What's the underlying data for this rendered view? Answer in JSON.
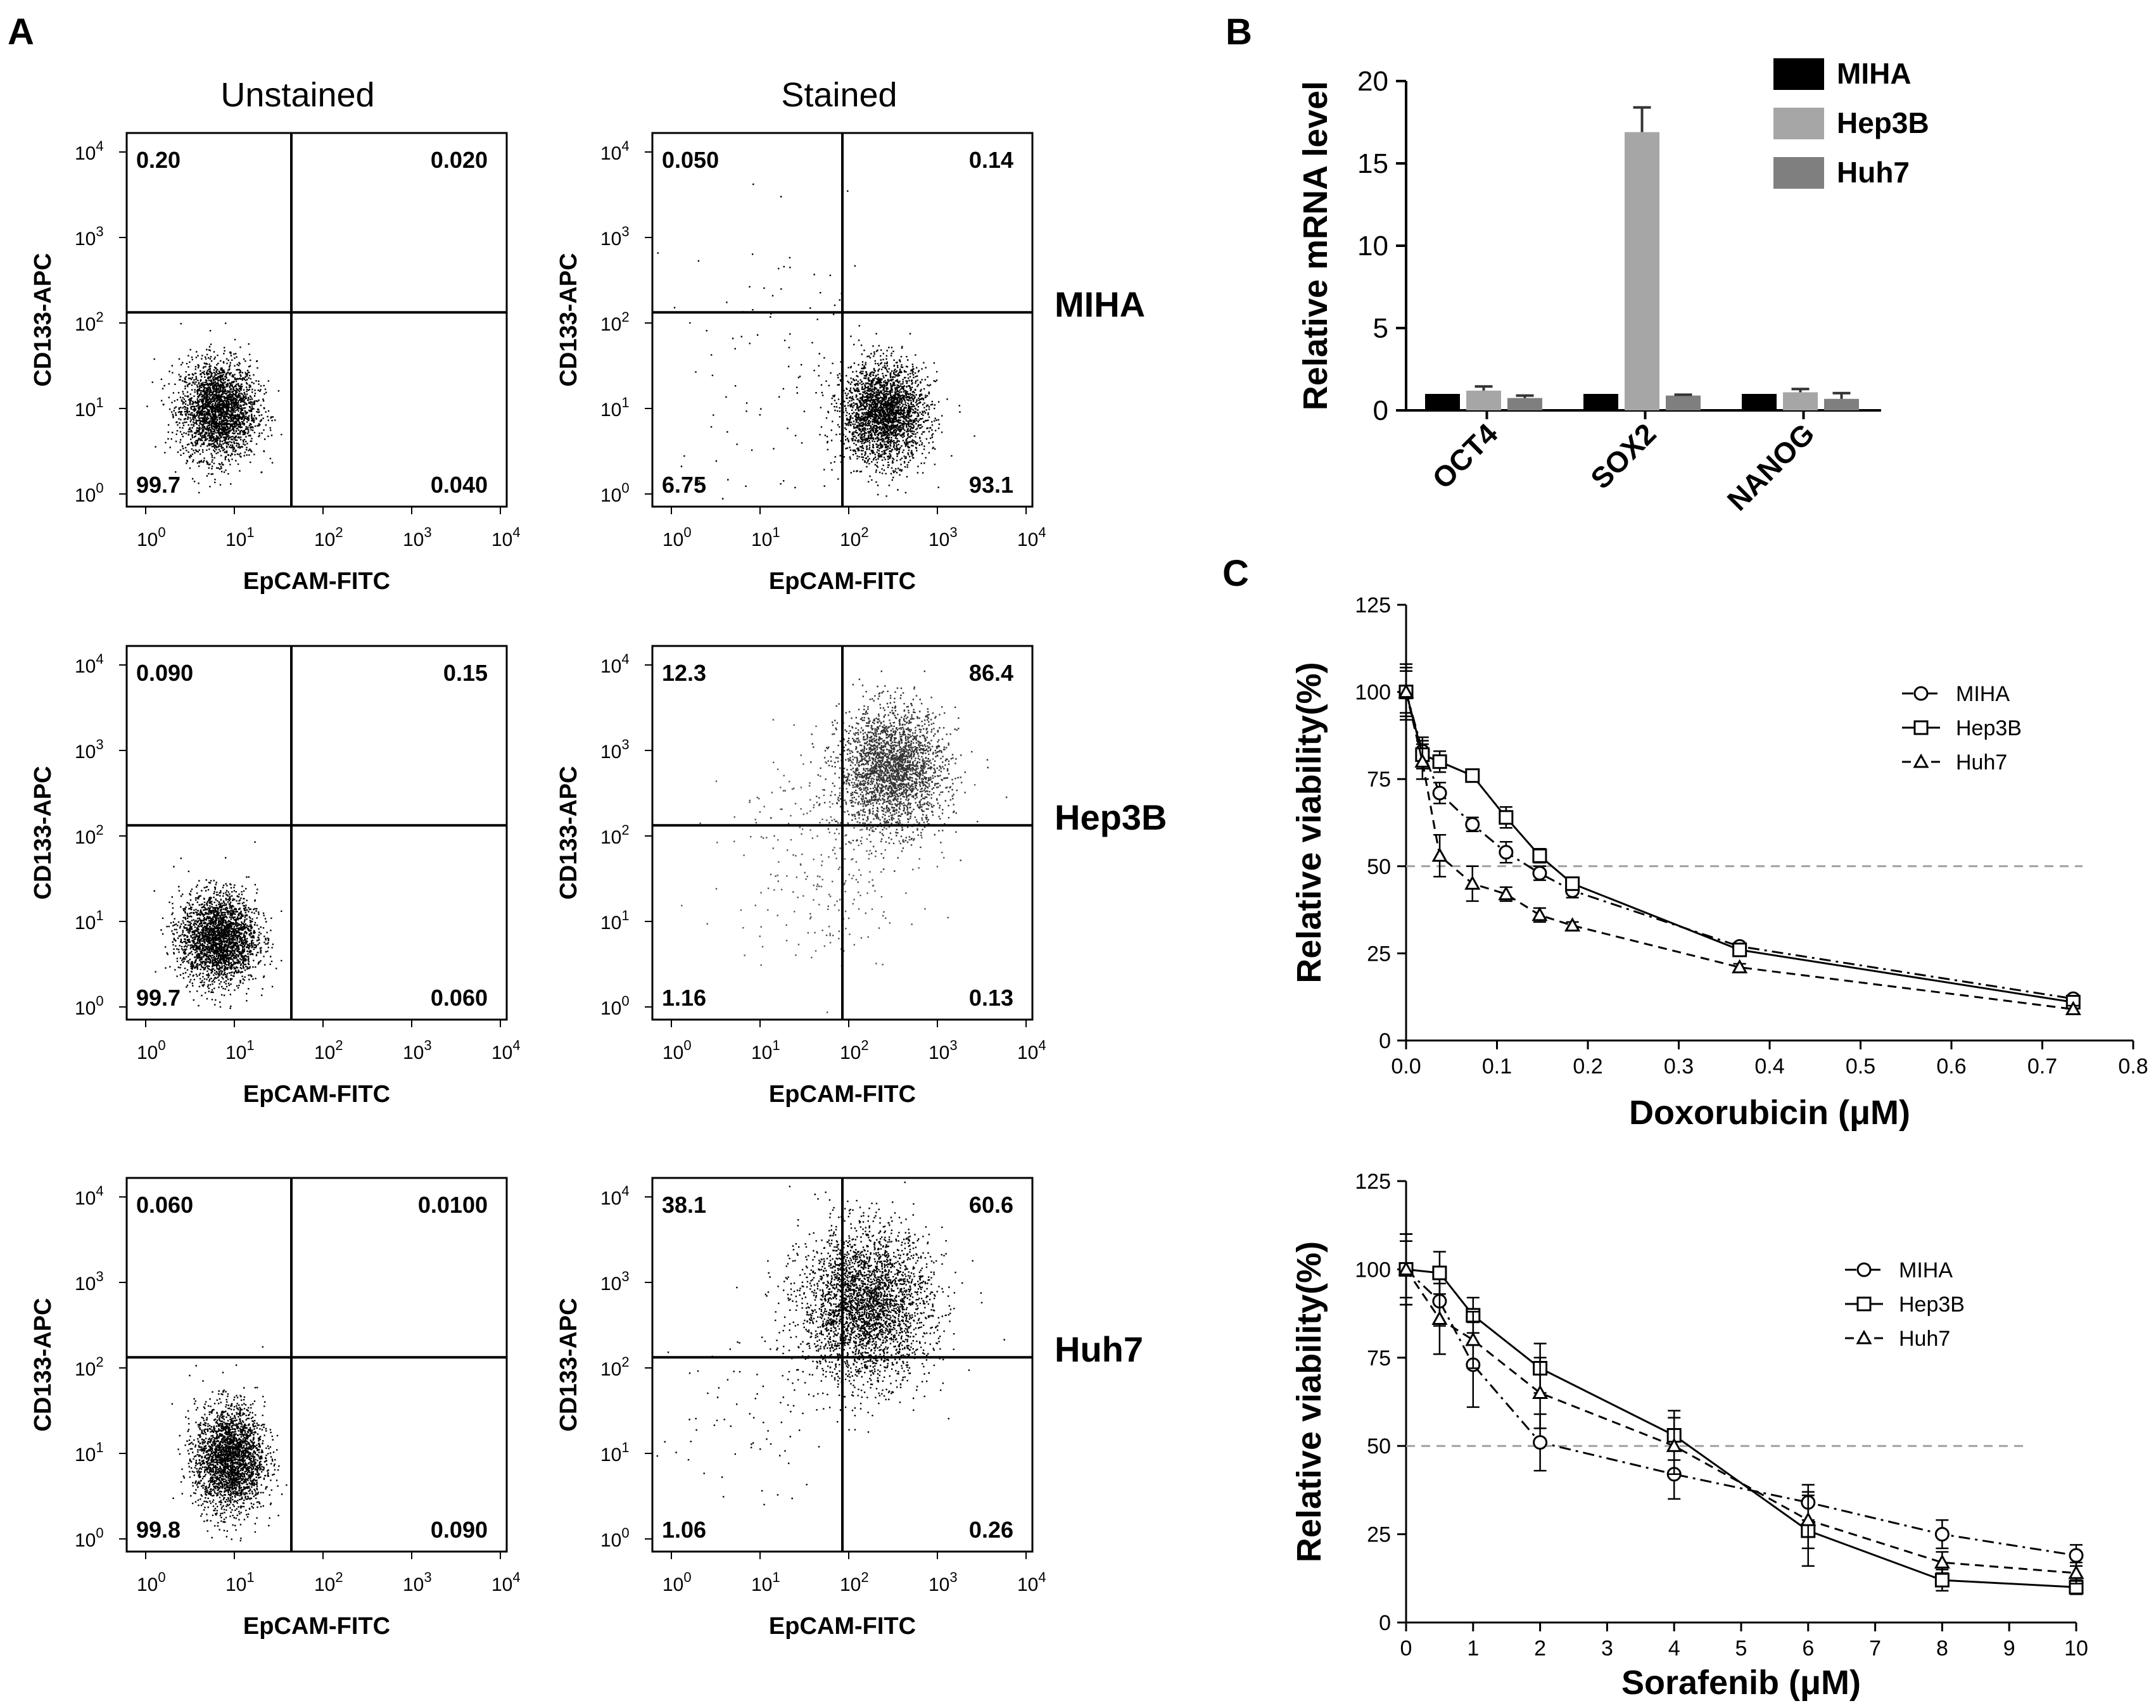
{
  "panel_labels": [
    "A",
    "B",
    "C"
  ],
  "flow": {
    "column_titles": [
      "Unstained",
      "Stained"
    ],
    "x_axis_label": "EpCAM-FITC",
    "y_axis_label": "CD133-APC",
    "tick_base": "10",
    "tick_exponents": [
      "0",
      "1",
      "2",
      "3",
      "4"
    ],
    "rows": [
      {
        "cell_line": "MIHA",
        "plots": [
          {
            "condition": "Unstained",
            "quadrants": {
              "top_left": "0.20",
              "top_right": "0.020",
              "bottom_left": "99.7",
              "bottom_right": "0.040"
            }
          },
          {
            "condition": "Stained",
            "quadrants": {
              "top_left": "0.050",
              "top_right": "0.14",
              "bottom_left": "6.75",
              "bottom_right": "93.1"
            }
          }
        ]
      },
      {
        "cell_line": "Hep3B",
        "plots": [
          {
            "condition": "Unstained",
            "quadrants": {
              "top_left": "0.090",
              "top_right": "0.15",
              "bottom_left": "99.7",
              "bottom_right": "0.060"
            }
          },
          {
            "condition": "Stained",
            "quadrants": {
              "top_left": "12.3",
              "top_right": "86.4",
              "bottom_left": "1.16",
              "bottom_right": "0.13"
            }
          }
        ]
      },
      {
        "cell_line": "Huh7",
        "plots": [
          {
            "condition": "Unstained",
            "quadrants": {
              "top_left": "0.060",
              "top_right": "0.0100",
              "bottom_left": "99.8",
              "bottom_right": "0.090"
            }
          },
          {
            "condition": "Stained",
            "quadrants": {
              "top_left": "38.1",
              "top_right": "60.6",
              "bottom_left": "1.06",
              "bottom_right": "0.26"
            }
          }
        ]
      }
    ]
  },
  "chart_data": [
    {
      "id": "B",
      "type": "bar",
      "title": "",
      "xlabel": "",
      "ylabel": "Relative mRNA level",
      "ylim": [
        0,
        20
      ],
      "yticks": [
        0,
        5,
        10,
        15,
        20
      ],
      "categories": [
        "OCT4",
        "SOX2",
        "NANOG"
      ],
      "series": [
        {
          "name": "MIHA",
          "color": "#000000",
          "values": [
            1.0,
            1.0,
            1.0
          ],
          "errors": [
            0,
            0,
            0
          ]
        },
        {
          "name": "Hep3B",
          "color": "#a6a6a6",
          "values": [
            1.2,
            16.9,
            1.1
          ],
          "errors": [
            0.25,
            1.5,
            0.2
          ]
        },
        {
          "name": "Huh7",
          "color": "#7f7f7f",
          "values": [
            0.75,
            0.9,
            0.7
          ],
          "errors": [
            0.15,
            0.05,
            0.35
          ]
        }
      ],
      "legend_position": "top-right"
    },
    {
      "id": "C-doxorubicin",
      "type": "line",
      "xlabel": "Doxorubicin (μM)",
      "ylabel": "Relative viability(%)",
      "xlim": [
        0,
        0.8
      ],
      "ylim": [
        0,
        125
      ],
      "xticks": [
        "0.0",
        "0.1",
        "0.2",
        "0.3",
        "0.4",
        "0.5",
        "0.6",
        "0.7",
        "0.8"
      ],
      "yticks": [
        "0",
        "25",
        "50",
        "75",
        "100",
        "125"
      ],
      "reference_line": 50,
      "legend_position": "top-right",
      "series": [
        {
          "name": "MIHA",
          "marker": "circle",
          "dash": "dashdot",
          "x": [
            0,
            0.018,
            0.037,
            0.073,
            0.11,
            0.147,
            0.183,
            0.367,
            0.734
          ],
          "y": [
            100,
            83,
            71,
            62,
            54,
            48,
            43,
            27,
            12
          ],
          "errors": [
            6,
            4,
            3,
            2,
            3,
            2,
            2,
            1,
            1
          ]
        },
        {
          "name": "Hep3B",
          "marker": "square",
          "dash": "solid",
          "x": [
            0,
            0.018,
            0.037,
            0.073,
            0.11,
            0.147,
            0.183,
            0.367,
            0.734
          ],
          "y": [
            100,
            82,
            80,
            76,
            64,
            53,
            45,
            26,
            11
          ],
          "errors": [
            7,
            4,
            3,
            1,
            3,
            2,
            1,
            1,
            1
          ]
        },
        {
          "name": "Huh7",
          "marker": "triangle",
          "dash": "dashed",
          "x": [
            0,
            0.018,
            0.037,
            0.073,
            0.11,
            0.147,
            0.183,
            0.367,
            0.734
          ],
          "y": [
            100,
            80,
            53,
            45,
            42,
            36,
            33,
            21,
            9
          ],
          "errors": [
            8,
            5,
            6,
            5,
            2,
            2,
            1,
            1,
            1
          ]
        }
      ]
    },
    {
      "id": "C-sorafenib",
      "type": "line",
      "xlabel": "Sorafenib (μM)",
      "ylabel": "Relative viability(%)",
      "xlim": [
        0,
        10
      ],
      "ylim": [
        0,
        125
      ],
      "xticks": [
        "0",
        "1",
        "2",
        "3",
        "4",
        "5",
        "6",
        "7",
        "8",
        "9",
        "10"
      ],
      "yticks": [
        "0",
        "25",
        "50",
        "75",
        "100",
        "125"
      ],
      "reference_line": 50,
      "legend_position": "top-right",
      "series": [
        {
          "name": "MIHA",
          "marker": "circle",
          "dash": "dashdot",
          "x": [
            0,
            0.5,
            1,
            2,
            4,
            6,
            8,
            10
          ],
          "y": [
            100,
            91,
            73,
            51,
            42,
            34,
            25,
            19
          ],
          "errors": [
            10,
            7,
            12,
            8,
            7,
            5,
            4,
            3
          ]
        },
        {
          "name": "Hep3B",
          "marker": "square",
          "dash": "solid",
          "x": [
            0,
            0.5,
            1,
            2,
            4,
            6,
            8,
            10
          ],
          "y": [
            100,
            99,
            87,
            72,
            53,
            26,
            12,
            10
          ],
          "errors": [
            10,
            6,
            5,
            7,
            7,
            10,
            3,
            2
          ]
        },
        {
          "name": "Huh7",
          "marker": "triangle",
          "dash": "dashed",
          "x": [
            0,
            0.5,
            1,
            2,
            4,
            6,
            8,
            10
          ],
          "y": [
            100,
            86,
            80,
            65,
            50,
            29,
            17,
            14
          ],
          "errors": [
            8,
            10,
            8,
            10,
            8,
            8,
            3,
            3
          ]
        }
      ]
    }
  ]
}
